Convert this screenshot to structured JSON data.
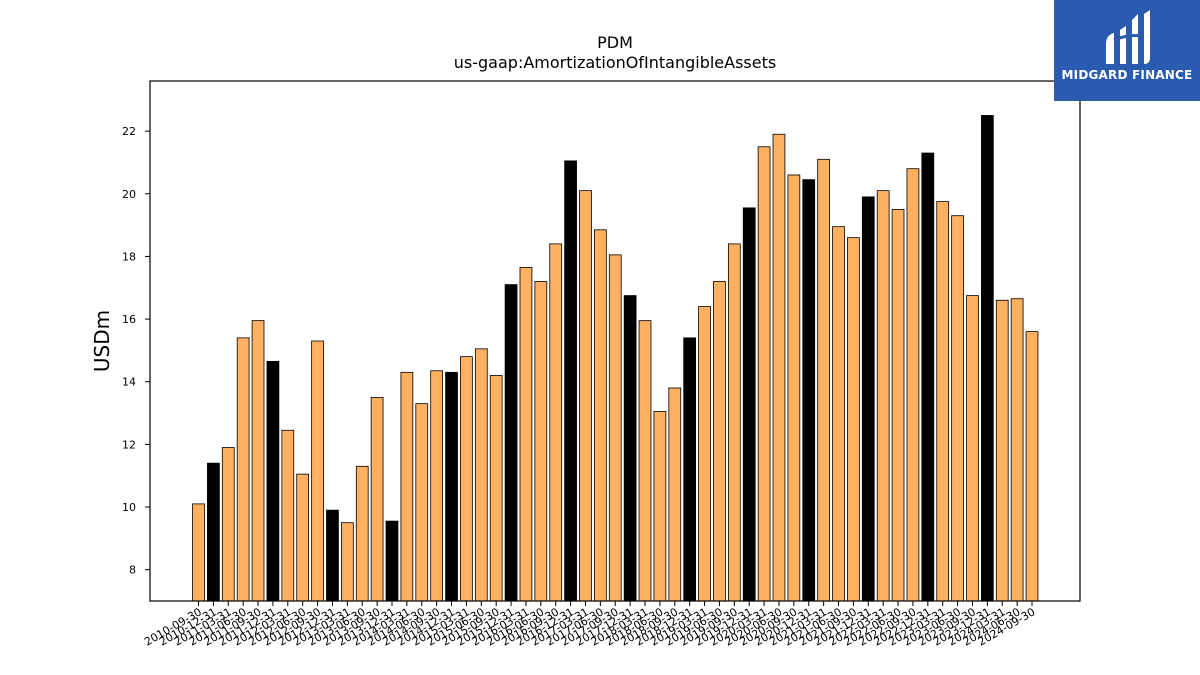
{
  "chart_data": {
    "type": "bar",
    "title": "PDM",
    "subtitle": "us-gaap:AmortizationOfIntangibleAssets",
    "ylabel": "USDm",
    "xlabel": "",
    "ylim": [
      7.0,
      23.6
    ],
    "yticks": [
      8,
      10,
      12,
      14,
      16,
      18,
      20,
      22
    ],
    "grid": false,
    "colors": {
      "quarter": "#ffb060",
      "year_end": "#000000",
      "edge": "#000000"
    },
    "categories": [
      "2010-09-30",
      "2010-12-31",
      "2011-03-31",
      "2011-06-30",
      "2011-09-30",
      "2011-12-31",
      "2012-03-31",
      "2012-06-30",
      "2012-09-30",
      "2012-12-31",
      "2013-03-31",
      "2013-06-30",
      "2013-09-30",
      "2013-12-31",
      "2014-03-31",
      "2014-06-30",
      "2014-09-30",
      "2014-12-31",
      "2015-03-31",
      "2015-06-30",
      "2015-09-30",
      "2015-12-31",
      "2016-03-31",
      "2016-06-30",
      "2016-09-30",
      "2016-12-31",
      "2017-03-31",
      "2017-06-30",
      "2017-09-30",
      "2017-12-31",
      "2018-03-31",
      "2018-06-30",
      "2018-09-30",
      "2018-12-31",
      "2019-03-31",
      "2019-06-30",
      "2019-09-30",
      "2019-12-31",
      "2020-03-31",
      "2020-06-30",
      "2020-09-30",
      "2020-12-31",
      "2021-03-31",
      "2021-06-30",
      "2021-09-30",
      "2021-12-31",
      "2022-03-31",
      "2022-06-30",
      "2022-09-30",
      "2022-12-31",
      "2023-03-31",
      "2023-06-30",
      "2023-09-30",
      "2023-12-31",
      "2024-03-31",
      "2024-06-30",
      "2024-09-30"
    ],
    "values": [
      10.1,
      11.4,
      11.9,
      15.4,
      15.95,
      14.65,
      12.45,
      11.05,
      15.3,
      9.9,
      9.5,
      11.3,
      13.5,
      9.55,
      14.3,
      13.3,
      14.35,
      14.3,
      14.8,
      15.05,
      14.2,
      17.1,
      17.65,
      17.2,
      18.4,
      21.05,
      20.1,
      18.85,
      18.05,
      16.75,
      15.95,
      13.05,
      13.8,
      15.4,
      16.4,
      17.2,
      18.4,
      19.55,
      21.5,
      21.9,
      20.6,
      20.45,
      21.1,
      18.95,
      18.6,
      19.9,
      20.1,
      19.5,
      20.8,
      21.3,
      19.75,
      19.3,
      16.75,
      22.5,
      16.6,
      16.65,
      15.6
    ],
    "year_end": [
      false,
      true,
      false,
      false,
      false,
      true,
      false,
      false,
      false,
      true,
      false,
      false,
      false,
      true,
      false,
      false,
      false,
      true,
      false,
      false,
      false,
      true,
      false,
      false,
      false,
      true,
      false,
      false,
      false,
      true,
      false,
      false,
      false,
      true,
      false,
      false,
      false,
      true,
      false,
      false,
      false,
      true,
      false,
      false,
      false,
      true,
      false,
      false,
      false,
      true,
      false,
      false,
      false,
      true,
      false,
      false,
      false
    ]
  },
  "logo": {
    "text": "MIDGARD FINANCE",
    "bg": "#2a5bb0"
  }
}
